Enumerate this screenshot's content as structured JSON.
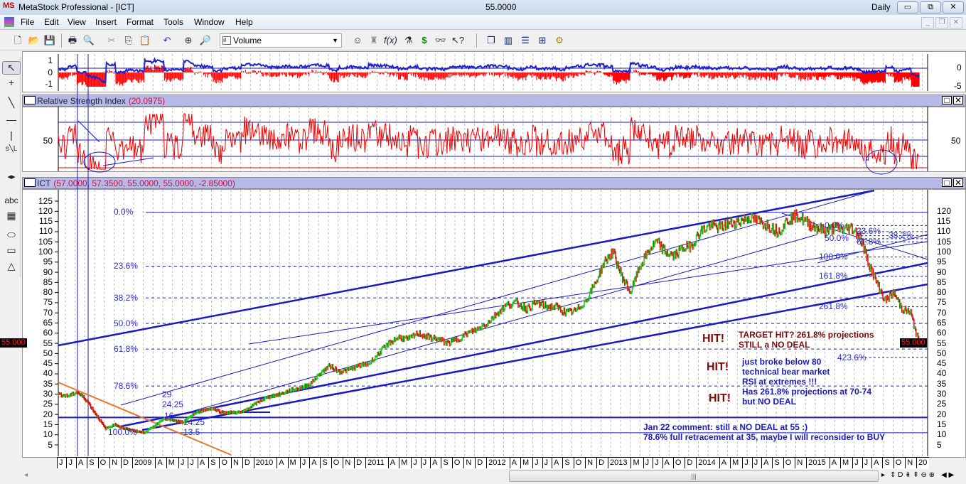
{
  "window": {
    "title": "MetaStock Professional - [ICT]",
    "center_value": "55.0000",
    "periodicity": "Daily",
    "minimize": "▭",
    "restore": "⧉",
    "close": "✕"
  },
  "menu": [
    "File",
    "Edit",
    "View",
    "Insert",
    "Format",
    "Tools",
    "Window",
    "Help"
  ],
  "toolbar": {
    "indicator_select": "Volume"
  },
  "panels": {
    "oscillator": {
      "left_ticks": [
        "1",
        "0",
        "-1"
      ],
      "right_ticks": [
        "0",
        "-5"
      ]
    },
    "rsi": {
      "title": "Relative Strength Index",
      "value": "(20.0975)",
      "left_tick": "50",
      "right_tick": "50"
    },
    "price": {
      "title": "ICT",
      "values": "(57.0000, 57.3500, 55.0000, 55.0000, -2.85000)",
      "last_price_badge": "55.000",
      "last_price_badge_right": "55.000",
      "left_ticks": [
        "125",
        "120",
        "115",
        "110",
        "105",
        "100",
        "95",
        "90",
        "85",
        "80",
        "75",
        "70",
        "65",
        "60",
        "55",
        "50",
        "45",
        "40",
        "35",
        "30",
        "25",
        "20",
        "15",
        "10",
        "5"
      ],
      "right_ticks": [
        "120",
        "115",
        "110",
        "105",
        "100",
        "95",
        "90",
        "85",
        "80",
        "75",
        "70",
        "65",
        "60",
        "55",
        "50",
        "45",
        "40",
        "35",
        "30",
        "25",
        "20",
        "15",
        "10",
        "5"
      ]
    }
  },
  "fib_retracement": [
    {
      "label": "0.0%",
      "price": 119.5
    },
    {
      "label": "23.6%",
      "price": 93
    },
    {
      "label": "38.2%",
      "price": 77.4
    },
    {
      "label": "50.0%",
      "price": 64.8
    },
    {
      "label": "61.8%",
      "price": 52.2
    },
    {
      "label": "78.6%",
      "price": 34
    },
    {
      "label": "100.0%",
      "price": 11
    }
  ],
  "fib_projection": [
    {
      "label": "0.0%",
      "price": 113
    },
    {
      "label": "23.6%",
      "price": 110
    },
    {
      "label": "38.2%",
      "price": 108
    },
    {
      "label": "50.0%",
      "price": 106.5
    },
    {
      "label": "61.8%",
      "price": 105
    },
    {
      "label": "100.0%",
      "price": 97.5
    },
    {
      "label": "161.8%",
      "price": 88
    },
    {
      "label": "261.8%",
      "price": 73
    },
    {
      "label": "423.6%",
      "price": 48
    }
  ],
  "chart_labels": [
    "29",
    "24.25",
    "16",
    "14.25",
    "13.5"
  ],
  "annotations": {
    "hit": "HIT!",
    "target": [
      "TARGET HIT? 261.8% projections",
      "STILL a NO DEAL"
    ],
    "bear": [
      "just broke below 80",
      "technical bear market",
      "RSI at extremes !!!",
      "Has 261.8% projections at 70-74",
      "but NO DEAL"
    ],
    "jan22": [
      "Jan 22 comment: still a NO DEAL at 55 :)",
      "78.6% full retracement at 35, maybe I will reconsider to BUY"
    ]
  },
  "x_axis": [
    "J",
    "J",
    "A",
    "S",
    "O",
    "N",
    "D",
    "2009",
    "A",
    "M",
    "J",
    "J",
    "A",
    "S",
    "O",
    "N",
    "D",
    "2010",
    "A",
    "M",
    "J",
    "A",
    "S",
    "O",
    "N",
    "D",
    "2011",
    "A",
    "M",
    "J",
    "J",
    "A",
    "S",
    "O",
    "N",
    "D",
    "2012",
    "A",
    "M",
    "J",
    "J",
    "A",
    "S",
    "O",
    "N",
    "D",
    "2013",
    "M",
    "J",
    "J",
    "A",
    "O",
    "D",
    "2014",
    "A",
    "M",
    "J",
    "J",
    "A",
    "S",
    "O",
    "N",
    "2015",
    "A",
    "M",
    "J",
    "J",
    "A",
    "S",
    "O",
    "N",
    "20"
  ],
  "price_series": {
    "start": "2008-06",
    "monthly_close": [
      30,
      29,
      31,
      27,
      20,
      13,
      15,
      13,
      12,
      11,
      14,
      18,
      17,
      16,
      20,
      22,
      23,
      21,
      21,
      21,
      24,
      27,
      29,
      30,
      32,
      33,
      35,
      40,
      44,
      41,
      42,
      44,
      45,
      50,
      55,
      58,
      57,
      60,
      58,
      57,
      55,
      57,
      60,
      62,
      65,
      70,
      74,
      75,
      72,
      75,
      73,
      73,
      70,
      71,
      76,
      85,
      95,
      100,
      88,
      80,
      92,
      100,
      105,
      100,
      98,
      102,
      103,
      110,
      113,
      112,
      114,
      115,
      117,
      115,
      113,
      110,
      116,
      118,
      114,
      112,
      110,
      112,
      111,
      112,
      108,
      95,
      85,
      76,
      80,
      72,
      70,
      55
    ]
  },
  "colors": {
    "up": "#22cc22",
    "down": "#dd1111",
    "line": "#1a1abf",
    "orange": "#e87830",
    "header": "#b6b8e6"
  }
}
